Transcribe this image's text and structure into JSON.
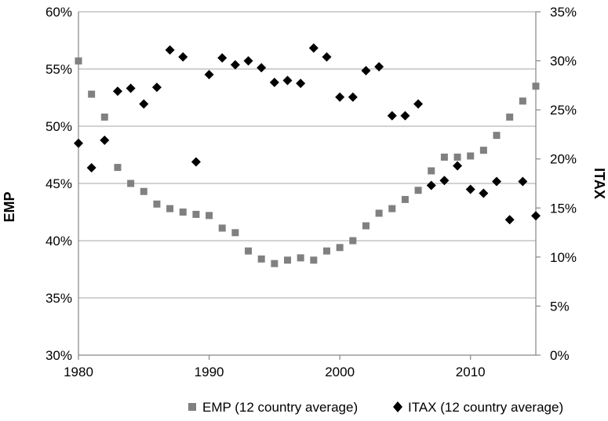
{
  "chart_data": {
    "type": "scatter",
    "xlim": [
      1980,
      2015
    ],
    "x_ticks": [
      1980,
      1990,
      2000,
      2010
    ],
    "y_left": {
      "label": "EMP",
      "lim": [
        30,
        60
      ],
      "ticks": [
        "30%",
        "35%",
        "40%",
        "45%",
        "50%",
        "55%",
        "60%"
      ],
      "tick_values": [
        30,
        35,
        40,
        45,
        50,
        55,
        60
      ]
    },
    "y_right": {
      "label": "ITAX",
      "lim": [
        0,
        35
      ],
      "ticks": [
        "0%",
        "5%",
        "10%",
        "15%",
        "20%",
        "25%",
        "30%",
        "35%"
      ],
      "tick_values": [
        0,
        5,
        10,
        15,
        20,
        25,
        30,
        35
      ]
    },
    "grid": true,
    "legend_position": "bottom",
    "series": [
      {
        "name": "EMP (12 country average)",
        "axis": "left",
        "marker": "square",
        "color": "#808080",
        "x": [
          1980,
          1981,
          1982,
          1983,
          1984,
          1985,
          1986,
          1987,
          1988,
          1989,
          1990,
          1991,
          1992,
          1993,
          1994,
          1995,
          1996,
          1997,
          1998,
          1999,
          2000,
          2001,
          2002,
          2003,
          2004,
          2005,
          2006,
          2007,
          2008,
          2009,
          2010,
          2011,
          2012,
          2013,
          2014,
          2015
        ],
        "y": [
          55.7,
          52.8,
          50.8,
          46.4,
          45.0,
          44.3,
          43.2,
          42.8,
          42.5,
          42.3,
          42.2,
          41.1,
          40.7,
          39.1,
          38.4,
          38.0,
          38.3,
          38.5,
          38.3,
          39.1,
          39.4,
          40.0,
          41.3,
          42.4,
          42.8,
          43.6,
          44.4,
          46.1,
          47.3,
          47.3,
          47.4,
          47.9,
          49.2,
          50.8,
          52.2,
          53.5
        ]
      },
      {
        "name": "ITAX (12 country average)",
        "axis": "right",
        "marker": "diamond",
        "color": "#000000",
        "x": [
          1980,
          1981,
          1982,
          1983,
          1984,
          1985,
          1986,
          1987,
          1988,
          1989,
          1990,
          1991,
          1992,
          1993,
          1994,
          1995,
          1996,
          1997,
          1998,
          1999,
          2000,
          2001,
          2002,
          2003,
          2004,
          2005,
          2006,
          2007,
          2008,
          2009,
          2010,
          2011,
          2012,
          2013,
          2014,
          2015
        ],
        "y": [
          21.6,
          19.1,
          21.9,
          26.9,
          27.2,
          25.6,
          27.3,
          31.1,
          30.4,
          19.7,
          28.6,
          30.3,
          29.6,
          30.0,
          29.3,
          27.8,
          28.0,
          27.7,
          31.3,
          30.4,
          26.3,
          26.3,
          29.0,
          29.4,
          24.4,
          24.4,
          25.6,
          17.3,
          17.8,
          19.3,
          16.9,
          16.5,
          17.7,
          13.8,
          17.7,
          14.2
        ]
      }
    ]
  }
}
